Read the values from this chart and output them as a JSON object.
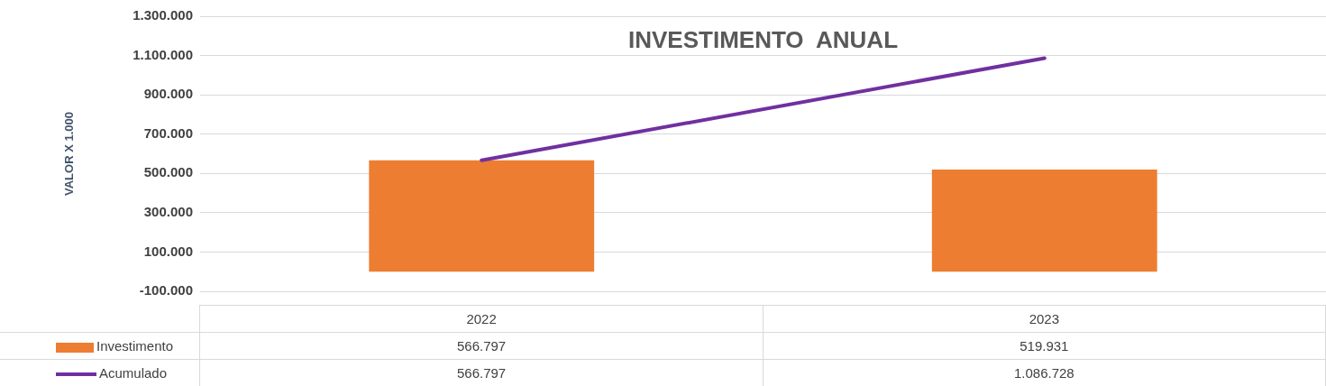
{
  "chart_data": {
    "type": "bar",
    "title": "INVESTIMENTO  ANUAL",
    "ylabel": "VALOR X 1.000",
    "categories": [
      "2022",
      "2023"
    ],
    "series": [
      {
        "name": "Investimento",
        "color": "#ed7d31",
        "values": [
          566797,
          519931
        ],
        "value_labels": [
          "566.797",
          "519.931"
        ]
      },
      {
        "name": "Acumulado",
        "type": "line",
        "color": "#7030a0",
        "values": [
          566797,
          1086728
        ],
        "value_labels": [
          "566.797",
          "1.086.728"
        ]
      }
    ],
    "ylim": [
      -100000,
      1300000
    ],
    "yticks": [
      {
        "value": -100000,
        "label": "-100.000"
      },
      {
        "value": 100000,
        "label": "100.000"
      },
      {
        "value": 300000,
        "label": "300.000"
      },
      {
        "value": 500000,
        "label": "500.000"
      },
      {
        "value": 700000,
        "label": "700.000"
      },
      {
        "value": 900000,
        "label": "900.000"
      },
      {
        "value": 1100000,
        "label": "1.100.000"
      },
      {
        "value": 1300000,
        "label": "1.300.000"
      }
    ],
    "grid": "y",
    "legend": "bottom",
    "marker": "none",
    "line_style": "solid"
  }
}
